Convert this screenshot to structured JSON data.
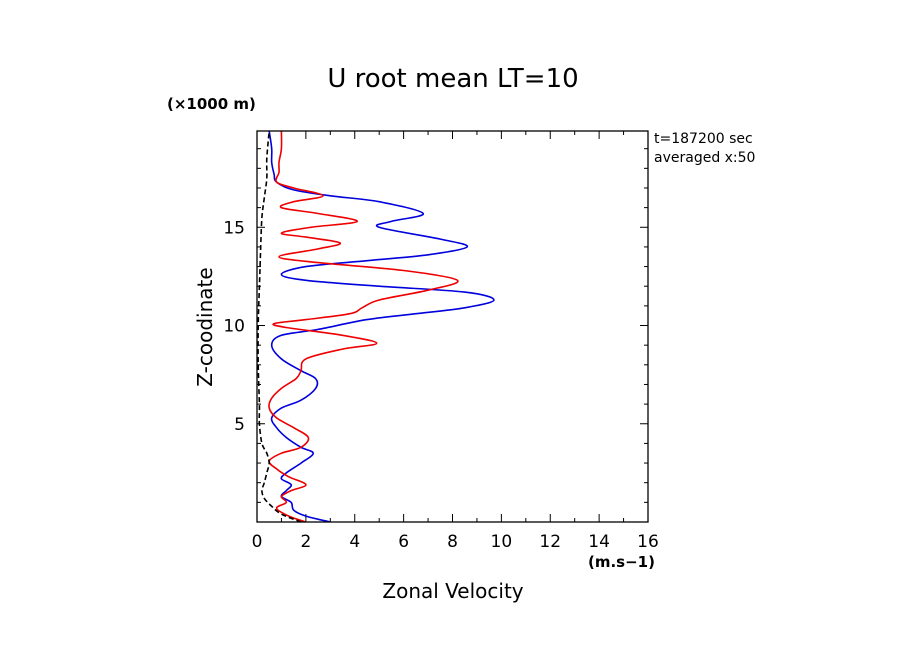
{
  "chart_data": {
    "type": "line",
    "title": "U root mean LT=10",
    "xlabel": "Zonal Velocity",
    "ylabel": "Z-coodinate",
    "x_unit": "(m.s−1)",
    "y_unit": "(×1000 m)",
    "xlim": [
      0,
      16
    ],
    "ylim": [
      0,
      19.9
    ],
    "x_ticks": [
      0,
      2,
      4,
      6,
      8,
      10,
      12,
      14,
      16
    ],
    "y_ticks": [
      5,
      10,
      15
    ],
    "grid": false,
    "legend": "none",
    "annotations": [
      "t=187200 sec",
      "averaged  x:50"
    ],
    "series": [
      {
        "color": "#0000dd",
        "style": "solid",
        "points": [
          [
            3.0,
            0.0
          ],
          [
            2.0,
            0.3
          ],
          [
            1.5,
            0.6
          ],
          [
            1.4,
            1.0
          ],
          [
            1.0,
            1.3
          ],
          [
            1.2,
            1.6
          ],
          [
            1.4,
            1.9
          ],
          [
            1.0,
            2.2
          ],
          [
            1.2,
            2.5
          ],
          [
            1.8,
            3.0
          ],
          [
            2.3,
            3.5
          ],
          [
            1.8,
            3.8
          ],
          [
            1.2,
            4.3
          ],
          [
            0.8,
            4.8
          ],
          [
            0.6,
            5.3
          ],
          [
            1.0,
            5.8
          ],
          [
            1.8,
            6.2
          ],
          [
            2.4,
            6.8
          ],
          [
            2.4,
            7.3
          ],
          [
            1.8,
            7.7
          ],
          [
            1.0,
            8.3
          ],
          [
            0.6,
            9.0
          ],
          [
            1.0,
            9.5
          ],
          [
            2.5,
            9.8
          ],
          [
            4.5,
            10.3
          ],
          [
            6.5,
            10.6
          ],
          [
            8.5,
            10.9
          ],
          [
            9.7,
            11.3
          ],
          [
            8.5,
            11.7
          ],
          [
            5.0,
            12.0
          ],
          [
            2.0,
            12.3
          ],
          [
            1.0,
            12.6
          ],
          [
            2.0,
            13.0
          ],
          [
            4.5,
            13.3
          ],
          [
            7.0,
            13.6
          ],
          [
            8.6,
            14.0
          ],
          [
            7.5,
            14.4
          ],
          [
            5.0,
            15.0
          ],
          [
            5.5,
            15.3
          ],
          [
            6.8,
            15.7
          ],
          [
            5.0,
            16.3
          ],
          [
            3.0,
            16.6
          ],
          [
            1.5,
            16.9
          ],
          [
            0.8,
            17.3
          ],
          [
            0.7,
            17.7
          ],
          [
            0.6,
            18.3
          ],
          [
            0.6,
            19.0
          ],
          [
            0.5,
            19.9
          ]
        ]
      },
      {
        "color": "#ee0000",
        "style": "solid",
        "points": [
          [
            2.0,
            0.0
          ],
          [
            1.3,
            0.3
          ],
          [
            0.8,
            0.7
          ],
          [
            1.2,
            1.0
          ],
          [
            1.0,
            1.3
          ],
          [
            1.4,
            1.6
          ],
          [
            2.0,
            1.9
          ],
          [
            1.3,
            2.3
          ],
          [
            0.8,
            2.7
          ],
          [
            0.5,
            3.1
          ],
          [
            1.0,
            3.5
          ],
          [
            1.8,
            3.8
          ],
          [
            2.1,
            4.3
          ],
          [
            1.5,
            4.8
          ],
          [
            0.8,
            5.3
          ],
          [
            0.5,
            5.8
          ],
          [
            0.6,
            6.3
          ],
          [
            1.0,
            6.8
          ],
          [
            1.6,
            7.3
          ],
          [
            1.8,
            7.7
          ],
          [
            2.0,
            8.3
          ],
          [
            3.5,
            8.8
          ],
          [
            4.9,
            9.1
          ],
          [
            3.5,
            9.5
          ],
          [
            1.2,
            9.9
          ],
          [
            0.7,
            10.1
          ],
          [
            2.0,
            10.3
          ],
          [
            3.8,
            10.6
          ],
          [
            4.3,
            10.9
          ],
          [
            5.0,
            11.3
          ],
          [
            7.0,
            11.8
          ],
          [
            8.2,
            12.3
          ],
          [
            6.0,
            12.8
          ],
          [
            2.5,
            13.2
          ],
          [
            0.9,
            13.5
          ],
          [
            2.5,
            13.9
          ],
          [
            3.4,
            14.2
          ],
          [
            2.0,
            14.5
          ],
          [
            1.0,
            14.7
          ],
          [
            2.2,
            15.0
          ],
          [
            4.1,
            15.3
          ],
          [
            2.5,
            15.7
          ],
          [
            1.0,
            16.0
          ],
          [
            1.5,
            16.3
          ],
          [
            2.7,
            16.6
          ],
          [
            1.5,
            17.0
          ],
          [
            0.8,
            17.3
          ],
          [
            0.9,
            17.8
          ],
          [
            0.9,
            18.3
          ],
          [
            1.0,
            19.0
          ],
          [
            1.0,
            19.9
          ]
        ]
      },
      {
        "color": "#000000",
        "style": "dashed",
        "points": [
          [
            1.8,
            0.0
          ],
          [
            1.0,
            0.4
          ],
          [
            0.6,
            0.8
          ],
          [
            0.3,
            1.2
          ],
          [
            0.2,
            1.6
          ],
          [
            0.3,
            2.0
          ],
          [
            0.4,
            2.5
          ],
          [
            0.5,
            3.0
          ],
          [
            0.4,
            3.5
          ],
          [
            0.2,
            4.0
          ],
          [
            0.1,
            5.0
          ],
          [
            0.1,
            6.0
          ],
          [
            0.05,
            8.0
          ],
          [
            0.05,
            10.0
          ],
          [
            0.1,
            12.0
          ],
          [
            0.15,
            14.0
          ],
          [
            0.2,
            15.5
          ],
          [
            0.3,
            16.5
          ],
          [
            0.4,
            17.5
          ],
          [
            0.4,
            18.5
          ],
          [
            0.5,
            19.9
          ]
        ]
      }
    ]
  }
}
